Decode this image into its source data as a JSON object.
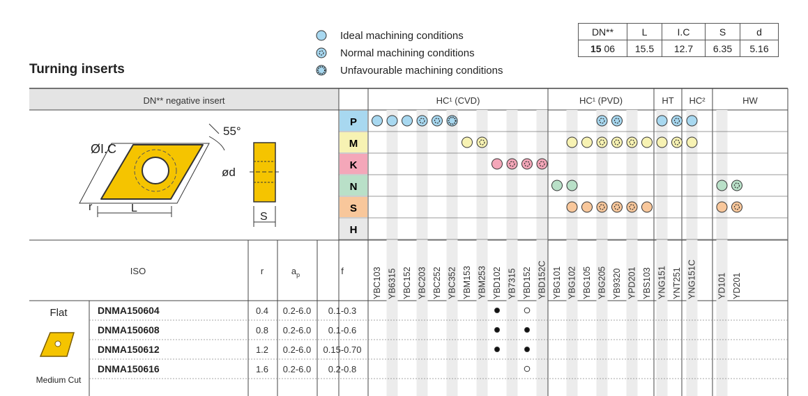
{
  "title": "Turning inserts",
  "legend": [
    {
      "icon": "ideal-circle-icon",
      "label": "Ideal machining conditions"
    },
    {
      "icon": "normal-circle-icon",
      "label": "Normal machining conditions"
    },
    {
      "icon": "unfavourable-circle-icon",
      "label": "Unfavourable machining conditions"
    }
  ],
  "dimensions": {
    "headers": [
      "DN**",
      "L",
      "I.C",
      "S",
      "d"
    ],
    "row": {
      "code_bold": "15",
      "code": "06",
      "L": "15.5",
      "IC": "12.7",
      "S": "6.35",
      "d": "5.16"
    }
  },
  "insert_type": "DN** negative insert",
  "drawing_labels": {
    "angle": "55°",
    "ic": "ØI.C",
    "d": "ød",
    "r": "r",
    "l": "L",
    "s": "S"
  },
  "groups": [
    {
      "label": "HC¹ (CVD)"
    },
    {
      "label": "HC¹ (PVD)"
    },
    {
      "label": "HT"
    },
    {
      "label": "HC²"
    },
    {
      "label": "HW"
    }
  ],
  "materials": [
    "P",
    "M",
    "K",
    "N",
    "S",
    "H"
  ],
  "material_colors": {
    "P": "#a8d8f0",
    "M": "#f7f2b3",
    "K": "#f4a7b9",
    "N": "#b9e0c8",
    "S": "#f8c79b",
    "H": "#e8e8e8"
  },
  "grades": [
    "YBC103",
    "YB6315",
    "YBC152",
    "YBC203",
    "YBC252",
    "YBC352",
    "YBM153",
    "YBM253",
    "YBD102",
    "YB7315",
    "YBD152",
    "YBD152C",
    "YBG101",
    "YBG102",
    "YBG105",
    "YBG205",
    "YB9320",
    "YPD201",
    "YBS103",
    "YNG151",
    "YNT251",
    "YNG151C",
    "",
    "YD101",
    "YD201"
  ],
  "iso_headers": {
    "iso": "ISO",
    "r": "r",
    "ap": "a",
    "ap_sub": "p",
    "f": "f"
  },
  "section": {
    "name": "Flat",
    "sub": "Medium Cut"
  },
  "rows": [
    {
      "code": "DNMA150604",
      "r": "0.4",
      "ap": "0.2-6.0",
      "f": "0.1-0.3"
    },
    {
      "code": "DNMA150608",
      "r": "0.8",
      "ap": "0.2-6.0",
      "f": "0.1-0.6"
    },
    {
      "code": "DNMA150612",
      "r": "1.2",
      "ap": "0.2-6.0",
      "f": "0.15-0.70"
    },
    {
      "code": "DNMA150616",
      "r": "1.6",
      "ap": "0.2-6.0",
      "f": "0.2-0.8"
    }
  ]
}
